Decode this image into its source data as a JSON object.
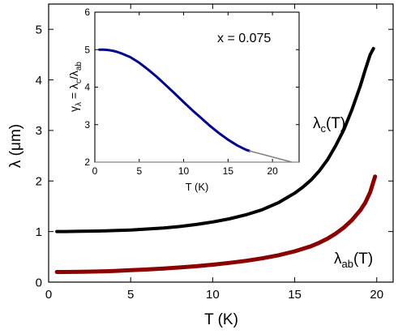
{
  "chart_data": [
    {
      "type": "line",
      "xlabel": "T (K)",
      "ylabel": "λ (μm)",
      "xlim": [
        0,
        21
      ],
      "ylim": [
        0,
        5.5
      ],
      "xticks": [
        0,
        5,
        10,
        15,
        20
      ],
      "yticks": [
        0,
        1,
        2,
        3,
        4,
        5
      ],
      "grid": false,
      "series": [
        {
          "name": "λc(T)",
          "label_main": "λ",
          "label_sub": "c",
          "label_tail": "(T)",
          "color": "#000000",
          "x": [
            0.5,
            1,
            2,
            3,
            4,
            5,
            6,
            7,
            8,
            9,
            10,
            11,
            12,
            13,
            14,
            15,
            15.5,
            16,
            16.5,
            17,
            17.5,
            18,
            18.5,
            19,
            19.3,
            19.6,
            19.8
          ],
          "y": [
            1.0,
            1.0,
            1.005,
            1.01,
            1.02,
            1.03,
            1.05,
            1.07,
            1.1,
            1.14,
            1.19,
            1.25,
            1.33,
            1.43,
            1.57,
            1.76,
            1.88,
            2.02,
            2.2,
            2.42,
            2.7,
            3.02,
            3.42,
            3.88,
            4.2,
            4.5,
            4.62
          ]
        },
        {
          "name": "λab(T)",
          "label_main": "λ",
          "label_sub": "ab",
          "label_tail": "(T)",
          "color": "#8b0000",
          "x": [
            0.5,
            1,
            2,
            3,
            4,
            5,
            6,
            7,
            8,
            9,
            10,
            11,
            12,
            13,
            14,
            15,
            16,
            16.5,
            17,
            17.5,
            18,
            18.5,
            19,
            19.3,
            19.6,
            19.9
          ],
          "y": [
            0.2,
            0.2,
            0.205,
            0.21,
            0.22,
            0.235,
            0.25,
            0.27,
            0.29,
            0.315,
            0.345,
            0.38,
            0.42,
            0.47,
            0.53,
            0.61,
            0.71,
            0.78,
            0.86,
            0.96,
            1.08,
            1.23,
            1.42,
            1.57,
            1.78,
            2.09
          ]
        }
      ]
    },
    {
      "type": "line",
      "annotation": "x = 0.075",
      "xlabel": "T (K)",
      "ylabel_text": "γ",
      "ylabel_sub": "λ",
      "ylabel_eq": " = λ",
      "ylabel_sub2": "c",
      "ylabel_slash": "/λ",
      "ylabel_sub3": "ab",
      "xlim": [
        0,
        23
      ],
      "ylim": [
        2,
        6
      ],
      "xticks": [
        0,
        5,
        10,
        15,
        20
      ],
      "yticks": [
        2,
        3,
        4,
        5,
        6
      ],
      "baseline": 2,
      "series": [
        {
          "name": "data",
          "color": "#00008b",
          "x": [
            0.5,
            1,
            1.5,
            2,
            2.5,
            3,
            4,
            5,
            6,
            7,
            8,
            9,
            10,
            11,
            12,
            13,
            14,
            15,
            16,
            17,
            17.4
          ],
          "y": [
            5.0,
            5.0,
            4.99,
            4.97,
            4.94,
            4.9,
            4.8,
            4.65,
            4.47,
            4.27,
            4.05,
            3.83,
            3.6,
            3.38,
            3.17,
            2.96,
            2.77,
            2.6,
            2.45,
            2.33,
            2.3
          ]
        },
        {
          "name": "extrapolation",
          "color": "#808080",
          "x": [
            17.4,
            22.2
          ],
          "y": [
            2.3,
            2.0
          ]
        }
      ]
    }
  ]
}
